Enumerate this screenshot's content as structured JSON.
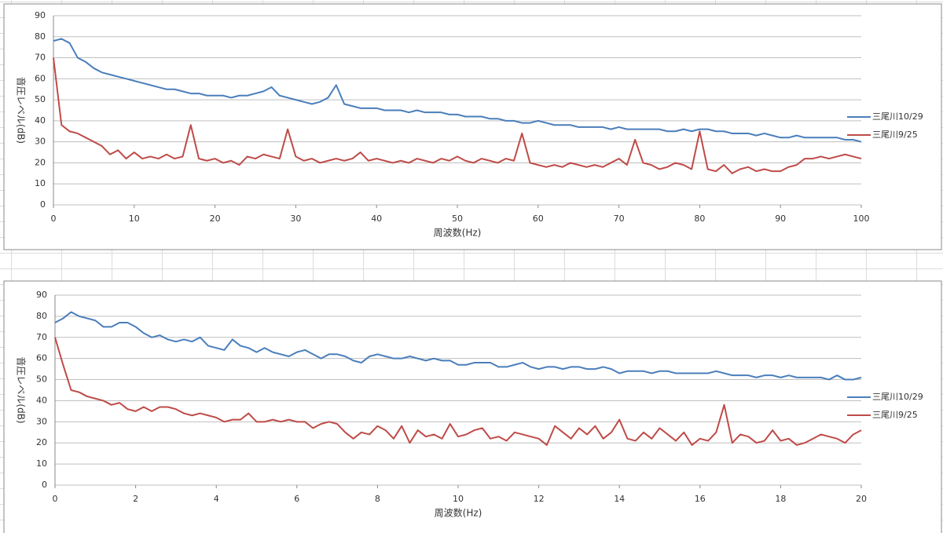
{
  "chart_data": [
    {
      "type": "line",
      "x_label": "周波数(Hz)",
      "y_label": "音圧レベル(dB)",
      "xlim": [
        0,
        100
      ],
      "xticks": [
        0,
        10,
        20,
        30,
        40,
        50,
        60,
        70,
        80,
        90,
        100
      ],
      "ylim": [
        0,
        90
      ],
      "yticks": [
        0,
        10,
        20,
        30,
        40,
        50,
        60,
        70,
        80,
        90
      ],
      "grid": true,
      "legend": "right",
      "x": [
        0,
        1,
        2,
        3,
        4,
        5,
        6,
        7,
        8,
        9,
        10,
        11,
        12,
        13,
        14,
        15,
        16,
        17,
        18,
        19,
        20,
        21,
        22,
        23,
        24,
        25,
        26,
        27,
        28,
        29,
        30,
        31,
        32,
        33,
        34,
        35,
        36,
        37,
        38,
        39,
        40,
        41,
        42,
        43,
        44,
        45,
        46,
        47,
        48,
        49,
        50,
        51,
        52,
        53,
        54,
        55,
        56,
        57,
        58,
        59,
        60,
        61,
        62,
        63,
        64,
        65,
        66,
        67,
        68,
        69,
        70,
        71,
        72,
        73,
        74,
        75,
        76,
        77,
        78,
        79,
        80,
        81,
        82,
        83,
        84,
        85,
        86,
        87,
        88,
        89,
        90,
        91,
        92,
        93,
        94,
        95,
        96,
        97,
        98,
        99,
        100
      ],
      "series": [
        {
          "name": "三尾川10/29",
          "color": "#4a7ebb",
          "values": [
            78,
            79,
            77,
            70,
            68,
            65,
            63,
            62,
            61,
            60,
            59,
            58,
            57,
            56,
            55,
            55,
            54,
            53,
            53,
            52,
            52,
            52,
            51,
            52,
            52,
            53,
            54,
            56,
            52,
            51,
            50,
            49,
            48,
            49,
            51,
            57,
            48,
            47,
            46,
            46,
            46,
            45,
            45,
            45,
            44,
            45,
            44,
            44,
            44,
            43,
            43,
            42,
            42,
            42,
            41,
            41,
            40,
            40,
            39,
            39,
            40,
            39,
            38,
            38,
            38,
            37,
            37,
            37,
            37,
            36,
            37,
            36,
            36,
            36,
            36,
            36,
            35,
            35,
            36,
            35,
            36,
            36,
            35,
            35,
            34,
            34,
            34,
            33,
            34,
            33,
            32,
            32,
            33,
            32,
            32,
            32,
            32,
            32,
            31,
            31,
            30
          ]
        },
        {
          "name": "三尾川9/25",
          "color": "#be4b48",
          "values": [
            70,
            38,
            35,
            34,
            32,
            30,
            28,
            24,
            26,
            22,
            25,
            22,
            23,
            22,
            24,
            22,
            23,
            38,
            22,
            21,
            22,
            20,
            21,
            19,
            23,
            22,
            24,
            23,
            22,
            36,
            23,
            21,
            22,
            20,
            21,
            22,
            21,
            22,
            25,
            21,
            22,
            21,
            20,
            21,
            20,
            22,
            21,
            20,
            22,
            21,
            23,
            21,
            20,
            22,
            21,
            20,
            22,
            21,
            34,
            20,
            19,
            18,
            19,
            18,
            20,
            19,
            18,
            19,
            18,
            20,
            22,
            19,
            31,
            20,
            19,
            17,
            18,
            20,
            19,
            17,
            35,
            17,
            16,
            19,
            15,
            17,
            18,
            16,
            17,
            16,
            16,
            18,
            19,
            22,
            22,
            23,
            22,
            23,
            24,
            23,
            22
          ]
        }
      ]
    },
    {
      "type": "line",
      "x_label": "周波数(Hz)",
      "y_label": "音圧レベル(dB)",
      "xlim": [
        0,
        20
      ],
      "xticks": [
        0,
        2,
        4,
        6,
        8,
        10,
        12,
        14,
        16,
        18,
        20
      ],
      "ylim": [
        0,
        90
      ],
      "yticks": [
        0,
        10,
        20,
        30,
        40,
        50,
        60,
        70,
        80,
        90
      ],
      "grid": true,
      "legend": "right",
      "x": [
        0,
        0.2,
        0.4,
        0.6,
        0.8,
        1,
        1.2,
        1.4,
        1.6,
        1.8,
        2,
        2.2,
        2.4,
        2.6,
        2.8,
        3,
        3.2,
        3.4,
        3.6,
        3.8,
        4,
        4.2,
        4.4,
        4.6,
        4.8,
        5,
        5.2,
        5.4,
        5.6,
        5.8,
        6,
        6.2,
        6.4,
        6.6,
        6.8,
        7,
        7.2,
        7.4,
        7.6,
        7.8,
        8,
        8.2,
        8.4,
        8.6,
        8.8,
        9,
        9.2,
        9.4,
        9.6,
        9.8,
        10,
        10.2,
        10.4,
        10.6,
        10.8,
        11,
        11.2,
        11.4,
        11.6,
        11.8,
        12,
        12.2,
        12.4,
        12.6,
        12.8,
        13,
        13.2,
        13.4,
        13.6,
        13.8,
        14,
        14.2,
        14.4,
        14.6,
        14.8,
        15,
        15.2,
        15.4,
        15.6,
        15.8,
        16,
        16.2,
        16.4,
        16.6,
        16.8,
        17,
        17.2,
        17.4,
        17.6,
        17.8,
        18,
        18.2,
        18.4,
        18.6,
        18.8,
        19,
        19.2,
        19.4,
        19.6,
        19.8,
        20
      ],
      "series": [
        {
          "name": "三尾川10/29",
          "color": "#4a7ebb",
          "values": [
            77,
            79,
            82,
            80,
            79,
            78,
            75,
            75,
            77,
            77,
            75,
            72,
            70,
            71,
            69,
            68,
            69,
            68,
            70,
            66,
            65,
            64,
            69,
            66,
            65,
            63,
            65,
            63,
            62,
            61,
            63,
            64,
            62,
            60,
            62,
            62,
            61,
            59,
            58,
            61,
            62,
            61,
            60,
            60,
            61,
            60,
            59,
            60,
            59,
            59,
            57,
            57,
            58,
            58,
            58,
            56,
            56,
            57,
            58,
            56,
            55,
            56,
            56,
            55,
            56,
            56,
            55,
            55,
            56,
            55,
            53,
            54,
            54,
            54,
            53,
            54,
            54,
            53,
            53,
            53,
            53,
            53,
            54,
            53,
            52,
            52,
            52,
            51,
            52,
            52,
            51,
            52,
            51,
            51,
            51,
            51,
            50,
            52,
            50,
            50,
            51
          ]
        },
        {
          "name": "三尾川9/25",
          "color": "#be4b48",
          "values": [
            70,
            57,
            45,
            44,
            42,
            41,
            40,
            38,
            39,
            36,
            35,
            37,
            35,
            37,
            37,
            36,
            34,
            33,
            34,
            33,
            32,
            30,
            31,
            31,
            34,
            30,
            30,
            31,
            30,
            31,
            30,
            30,
            27,
            29,
            30,
            29,
            25,
            22,
            25,
            24,
            28,
            26,
            22,
            28,
            20,
            26,
            23,
            24,
            22,
            29,
            23,
            24,
            26,
            27,
            22,
            23,
            21,
            25,
            24,
            23,
            22,
            19,
            28,
            25,
            22,
            27,
            24,
            28,
            22,
            25,
            31,
            22,
            21,
            25,
            22,
            27,
            24,
            21,
            25,
            19,
            22,
            21,
            25,
            38,
            20,
            24,
            23,
            20,
            21,
            26,
            21,
            22,
            19,
            20,
            22,
            24,
            23,
            22,
            20,
            24,
            26
          ]
        }
      ]
    }
  ]
}
